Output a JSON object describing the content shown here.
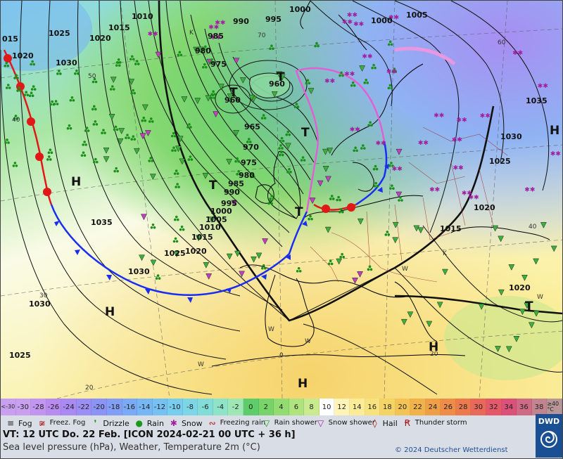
{
  "scale": {
    "cells": [
      {
        "label": "<-30",
        "color": "#c9a0f0"
      },
      {
        "label": "-30",
        "color": "#c9a0f0"
      },
      {
        "label": "-28",
        "color": "#c195f0"
      },
      {
        "label": "-26",
        "color": "#b78bf0"
      },
      {
        "label": "-24",
        "color": "#a98af2"
      },
      {
        "label": "-22",
        "color": "#9b8ef4"
      },
      {
        "label": "-20",
        "color": "#8b94f5"
      },
      {
        "label": "-18",
        "color": "#839ef5"
      },
      {
        "label": "-16",
        "color": "#7aaaf5"
      },
      {
        "label": "-14",
        "color": "#76b6f4"
      },
      {
        "label": "-12",
        "color": "#75c2f2"
      },
      {
        "label": "-10",
        "color": "#78cdee"
      },
      {
        "label": "-8",
        "color": "#7dd6e6"
      },
      {
        "label": "-6",
        "color": "#82ddd8"
      },
      {
        "label": "-4",
        "color": "#8fe3c8"
      },
      {
        "label": "-2",
        "color": "#9fe8b6"
      },
      {
        "label": "0",
        "color": "#5fcc6a"
      },
      {
        "label": "2",
        "color": "#78d46a"
      },
      {
        "label": "4",
        "color": "#93dc72"
      },
      {
        "label": "6",
        "color": "#aee37e"
      },
      {
        "label": "8",
        "color": "#c9ea8e"
      },
      {
        "label": "10",
        "color": "#ffffff"
      },
      {
        "label": "12",
        "color": "#fff4b8"
      },
      {
        "label": "14",
        "color": "#fcec98"
      },
      {
        "label": "16",
        "color": "#f8e27c"
      },
      {
        "label": "18",
        "color": "#f5d466"
      },
      {
        "label": "20",
        "color": "#f3c455"
      },
      {
        "label": "22",
        "color": "#f1b24c"
      },
      {
        "label": "24",
        "color": "#ef9f48"
      },
      {
        "label": "26",
        "color": "#ee8c48"
      },
      {
        "label": "28",
        "color": "#ec7a4c"
      },
      {
        "label": "30",
        "color": "#e8685a"
      },
      {
        "label": "32",
        "color": "#e3596a"
      },
      {
        "label": "34",
        "color": "#dc5179"
      },
      {
        "label": "36",
        "color": "#cf6a85"
      },
      {
        "label": "38",
        "color": "#c28590"
      },
      {
        "label": "≥40 °C",
        "color": "#b89596"
      }
    ]
  },
  "legend": [
    {
      "icon": "fog-icon",
      "glyph": "≡",
      "label": "Fog",
      "color": "#222"
    },
    {
      "icon": "freezing-fog-icon",
      "glyph": "≆",
      "label": "Freez. Fog",
      "color": "#b01010"
    },
    {
      "icon": "drizzle-icon",
      "glyph": "❜",
      "label": "Drizzle",
      "color": "#1a9a1a"
    },
    {
      "icon": "rain-icon",
      "glyph": "●",
      "label": "Rain",
      "color": "#1a9a1a"
    },
    {
      "icon": "snow-icon",
      "glyph": "✱",
      "label": "Snow",
      "color": "#a020a0"
    },
    {
      "icon": "freezing-rain-icon",
      "glyph": "∾",
      "label": "Freezing rain",
      "color": "#b01010"
    },
    {
      "icon": "rain-shower-icon",
      "glyph": "▽",
      "label": "Rain shower",
      "color": "#1a9a1a"
    },
    {
      "icon": "snow-shower-icon",
      "glyph": "▽",
      "label": "Snow shower",
      "color": "#a020a0"
    },
    {
      "icon": "hail-icon",
      "glyph": "◊",
      "label": "Hail",
      "color": "#b01010"
    },
    {
      "icon": "thunderstorm-icon",
      "glyph": "Ꞧ",
      "label": "Thunder storm",
      "color": "#b01010"
    }
  ],
  "info": {
    "valid_time": "VT: 12 UTC Do.   22 Feb. [ICON 2024-02-21   00 UTC + 36 h]",
    "description": "Sea level pressure (hPa), Weather, Temperature 2m (°C)",
    "copyright": "© 2024 Deutscher Wetterdienst",
    "logo": "DWD"
  },
  "map": {
    "pressure_labels": [
      "1010",
      "990",
      "995",
      "1000",
      "1005",
      "1015",
      "1025",
      "1020",
      "1020",
      "1030",
      "985",
      "980",
      "975",
      "960",
      "960",
      "965",
      "970",
      "975",
      "980",
      "985",
      "990",
      "995",
      "1000",
      "1005",
      "1010",
      "1015",
      "1020",
      "1025",
      "1030",
      "1035",
      "1030",
      "1025",
      "1000",
      "1035",
      "1030",
      "1025",
      "1020",
      "1015",
      "1020",
      "015"
    ],
    "centers": [
      {
        "letter": "H"
      },
      {
        "letter": "H"
      },
      {
        "letter": "H"
      },
      {
        "letter": "H"
      },
      {
        "letter": "H"
      },
      {
        "letter": "T"
      },
      {
        "letter": "T"
      },
      {
        "letter": "T"
      },
      {
        "letter": "T"
      },
      {
        "letter": "T"
      },
      {
        "letter": "T"
      }
    ],
    "minor_labels": [
      "K",
      "K",
      "W",
      "W",
      "W",
      "W",
      "W",
      "50",
      "60",
      "70",
      "40",
      "40",
      "30",
      "20",
      "20",
      "0"
    ]
  }
}
